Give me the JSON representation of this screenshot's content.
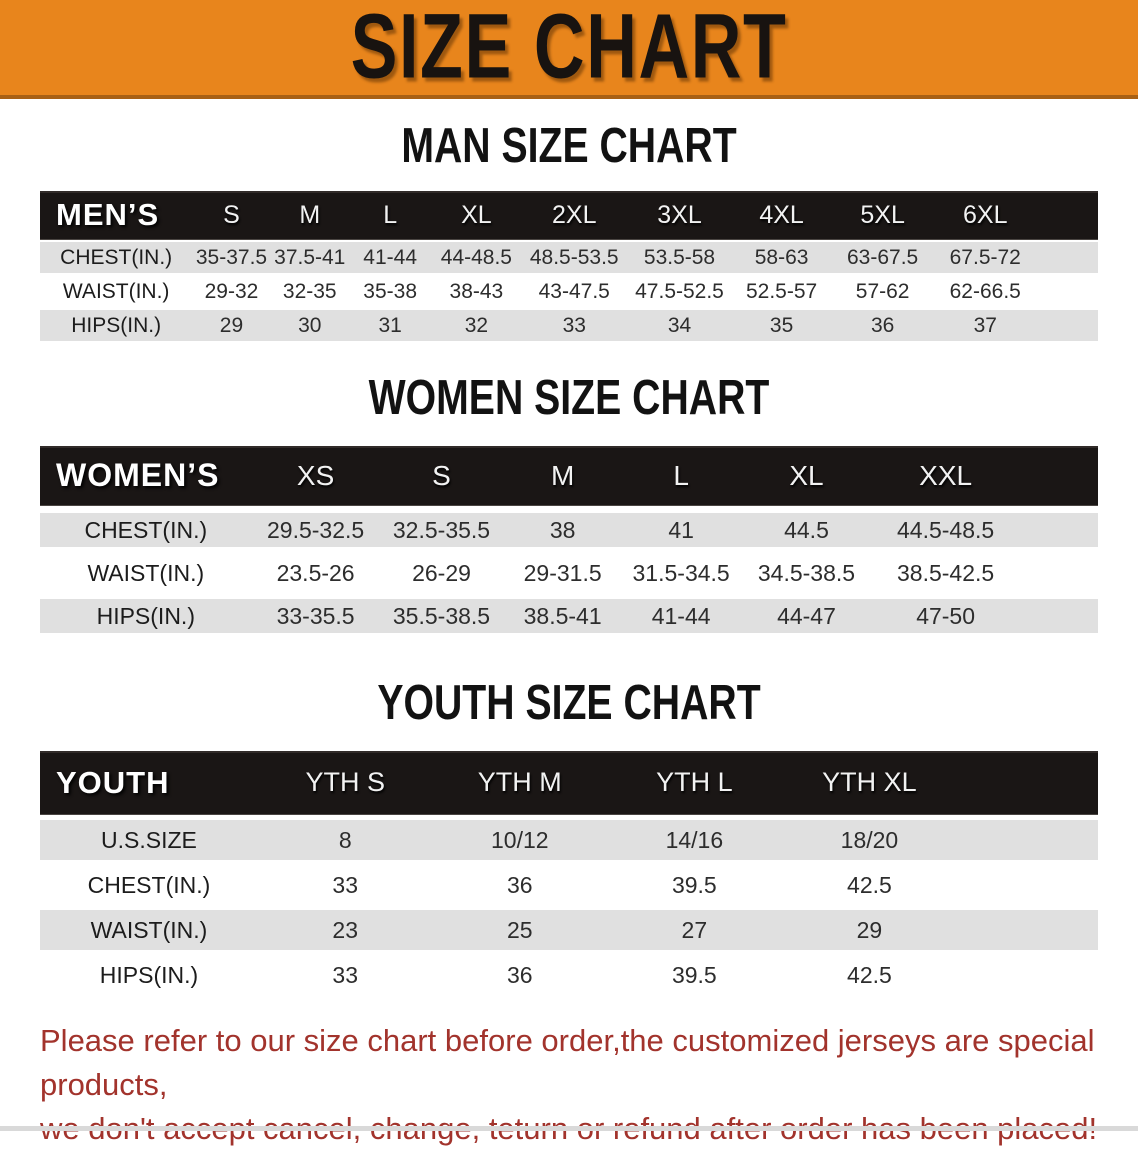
{
  "banner": {
    "title": "SIZE CHART"
  },
  "colors": {
    "banner_bg": "#e8851c",
    "table_header_bg": "#1a1615",
    "row_gray": "#e0e0e0",
    "note_red": "#a2332c"
  },
  "sections": [
    {
      "id": "men",
      "heading": "MAN SIZE CHART",
      "table": {
        "title": "MEN’S",
        "sizes": [
          "S",
          "M",
          "L",
          "XL",
          "2XL",
          "3XL",
          "4XL",
          "5XL",
          "6XL"
        ],
        "rows": [
          {
            "label": "CHEST(IN.)",
            "values": [
              "35-37.5",
              "37.5-41",
              "41-44",
              "44-48.5",
              "48.5-53.5",
              "53.5-58",
              "58-63",
              "63-67.5",
              "67.5-72"
            ]
          },
          {
            "label": "WAIST(IN.)",
            "values": [
              "29-32",
              "32-35",
              "35-38",
              "38-43",
              "43-47.5",
              "47.5-52.5",
              "52.5-57",
              "57-62",
              "62-66.5"
            ]
          },
          {
            "label": "HIPS(IN.)",
            "values": [
              "29",
              "30",
              "31",
              "32",
              "33",
              "34",
              "35",
              "36",
              "37"
            ]
          }
        ]
      }
    },
    {
      "id": "women",
      "heading": "WOMEN SIZE CHART",
      "table": {
        "title": "WOMEN’S",
        "sizes": [
          "XS",
          "S",
          "M",
          "L",
          "XL",
          "XXL"
        ],
        "rows": [
          {
            "label": "CHEST(IN.)",
            "values": [
              "29.5-32.5",
              "32.5-35.5",
              "38",
              "41",
              "44.5",
              "44.5-48.5"
            ]
          },
          {
            "label": "WAIST(IN.)",
            "values": [
              "23.5-26",
              "26-29",
              "29-31.5",
              "31.5-34.5",
              "34.5-38.5",
              "38.5-42.5"
            ]
          },
          {
            "label": "HIPS(IN.)",
            "values": [
              "33-35.5",
              "35.5-38.5",
              "38.5-41",
              "41-44",
              "44-47",
              "47-50"
            ]
          }
        ]
      }
    },
    {
      "id": "youth",
      "heading": "YOUTH SIZE CHART",
      "table": {
        "title": "YOUTH",
        "sizes": [
          "YTH S",
          "YTH M",
          "YTH L",
          "YTH XL"
        ],
        "rows": [
          {
            "label": "U.S.SIZE",
            "values": [
              "8",
              "10/12",
              "14/16",
              "18/20"
            ]
          },
          {
            "label": "CHEST(IN.)",
            "values": [
              "33",
              "36",
              "39.5",
              "42.5"
            ]
          },
          {
            "label": "WAIST(IN.)",
            "values": [
              "23",
              "25",
              "27",
              "29"
            ]
          },
          {
            "label": "HIPS(IN.)",
            "values": [
              "33",
              "36",
              "39.5",
              "42.5"
            ]
          }
        ]
      }
    }
  ],
  "footer": {
    "line1": "Please refer to our size chart before order,the customized jerseys are special products,",
    "line2": "we don't accept cancel, change, teturn or refund after order has been placed!"
  }
}
